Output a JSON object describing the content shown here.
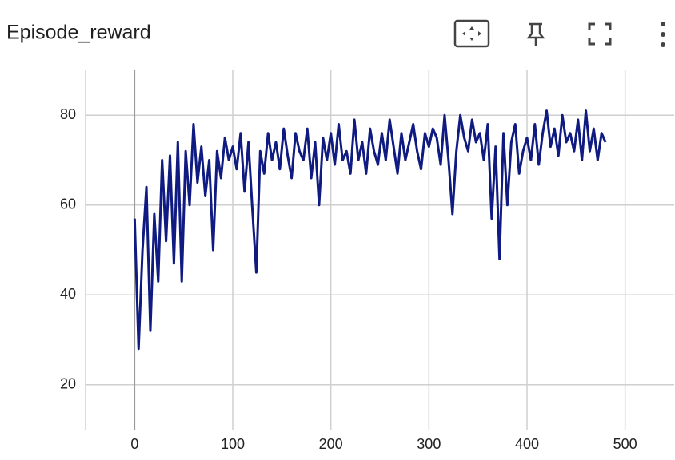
{
  "chart_data": {
    "type": "line",
    "title": "Episode_reward",
    "x": [
      0,
      4,
      8,
      12,
      16,
      20,
      24,
      28,
      32,
      36,
      40,
      44,
      48,
      52,
      56,
      60,
      64,
      68,
      72,
      76,
      80,
      84,
      88,
      92,
      96,
      100,
      104,
      108,
      112,
      116,
      120,
      124,
      128,
      132,
      136,
      140,
      144,
      148,
      152,
      156,
      160,
      164,
      168,
      172,
      176,
      180,
      184,
      188,
      192,
      196,
      200,
      204,
      208,
      212,
      216,
      220,
      224,
      228,
      232,
      236,
      240,
      244,
      248,
      252,
      256,
      260,
      264,
      268,
      272,
      276,
      280,
      284,
      288,
      292,
      296,
      300,
      304,
      308,
      312,
      316,
      320,
      324,
      328,
      332,
      336,
      340,
      344,
      348,
      352,
      356,
      360,
      364,
      368,
      372,
      376,
      380,
      384,
      388,
      392,
      396,
      400,
      404,
      408,
      412,
      416,
      420,
      424,
      428,
      432,
      436,
      440,
      444,
      448,
      452,
      456,
      460,
      464,
      468,
      472,
      476,
      480
    ],
    "series": [
      {
        "name": "Episode_reward",
        "color": "#0f1b80",
        "values": [
          57,
          28,
          50,
          64,
          32,
          58,
          43,
          70,
          52,
          71,
          47,
          74,
          43,
          72,
          60,
          78,
          65,
          73,
          62,
          70,
          50,
          72,
          66,
          75,
          70,
          73,
          68,
          76,
          63,
          74,
          59,
          45,
          72,
          67,
          76,
          70,
          74,
          68,
          77,
          71,
          66,
          76,
          72,
          70,
          77,
          66,
          74,
          60,
          75,
          70,
          76,
          69,
          78,
          70,
          72,
          67,
          79,
          70,
          74,
          67,
          77,
          72,
          69,
          76,
          70,
          79,
          73,
          67,
          76,
          70,
          74,
          78,
          72,
          68,
          76,
          73,
          77,
          75,
          69,
          80,
          70,
          58,
          72,
          80,
          75,
          72,
          79,
          74,
          76,
          70,
          78,
          57,
          73,
          48,
          76,
          60,
          74,
          78,
          67,
          72,
          75,
          70,
          78,
          69,
          76,
          81,
          73,
          77,
          71,
          80,
          74,
          76,
          72,
          79,
          70,
          81,
          72,
          77,
          70,
          76,
          74
        ]
      }
    ],
    "xlim": [
      -50,
      550
    ],
    "ylim": [
      10,
      90
    ],
    "xticks": [
      0,
      100,
      200,
      300,
      400,
      500
    ],
    "yticks": [
      20,
      40,
      60,
      80
    ],
    "grid": true
  }
}
